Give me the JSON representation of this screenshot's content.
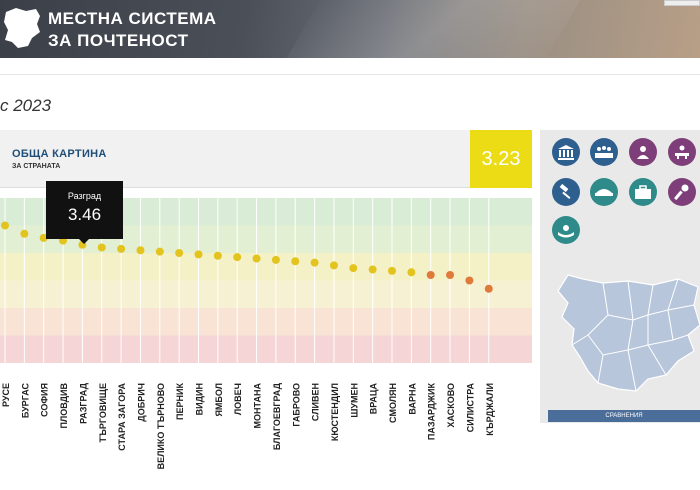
{
  "header": {
    "title_line1": "МЕСТНА СИСТЕМА",
    "title_line2": "ЗА ПОЧТЕНОСТ"
  },
  "page": {
    "year_title": "с 2023"
  },
  "panel": {
    "title": "ОБЩА КАРТИНА",
    "subtitle": "ЗА СТРАНАТА",
    "score": "3.23"
  },
  "tooltip": {
    "name": "Разград",
    "value": "3.46"
  },
  "icons": [
    "institution-icon",
    "council-icon",
    "officials-icon",
    "meeting-icon",
    "justice-gavel-icon",
    "police-icon",
    "briefcase-icon",
    "media-microphone-icon",
    "care-hands-icon"
  ],
  "sidebar": {
    "compare_label": "СРАВНЕНИЯ"
  },
  "colors": {
    "dot_yellow": "#e3c41e",
    "dot_orange": "#e07a3a",
    "score_bg": "#ecdc16",
    "icon_blue": "#2d5f8f",
    "icon_teal": "#2f8a8a",
    "icon_purple": "#7d3e7a",
    "map_fill": "#b8c6dc"
  },
  "chart_data": {
    "type": "scatter",
    "categories": [
      "РУСЕ",
      "БУРГАС",
      "СОФИЯ",
      "ПЛОВДИВ",
      "РАЗГРАД",
      "ТЪРГОВИЩЕ",
      "СТАРА ЗАГОРА",
      "ДОБРИЧ",
      "ВЕЛИКО ТЪРНОВО",
      "ПЕРНИК",
      "ВИДИН",
      "ЯМБОЛ",
      "ЛОВЕЧ",
      "МОНТАНА",
      "БЛАГОЕВГРАД",
      "ГАБРОВО",
      "СЛИВЕН",
      "КЮСТЕНДИЛ",
      "ШУМЕН",
      "ВРАЦА",
      "СМОЛЯН",
      "ВАРНА",
      "ПАЗАРДЖИК",
      "ХАСКОВО",
      "СИЛИСТРА",
      "КЪРДЖАЛИ"
    ],
    "values": [
      3.6,
      3.54,
      3.51,
      3.49,
      3.46,
      3.44,
      3.43,
      3.42,
      3.41,
      3.4,
      3.39,
      3.38,
      3.37,
      3.36,
      3.35,
      3.34,
      3.33,
      3.31,
      3.29,
      3.28,
      3.27,
      3.26,
      3.24,
      3.24,
      3.2,
      3.14
    ],
    "ylim": [
      2.6,
      3.8
    ],
    "bands": [
      {
        "from": 3.6,
        "to": 3.8,
        "color": "#d8ecd6"
      },
      {
        "from": 3.4,
        "to": 3.6,
        "color": "#e3efd2"
      },
      {
        "from": 3.2,
        "to": 3.4,
        "color": "#f4f1c7"
      },
      {
        "from": 3.0,
        "to": 3.2,
        "color": "#f7f1d3"
      },
      {
        "from": 2.8,
        "to": 3.0,
        "color": "#f8e3d4"
      },
      {
        "from": 2.6,
        "to": 2.8,
        "color": "#f5d5d5"
      }
    ],
    "orange_from_index": 22
  }
}
